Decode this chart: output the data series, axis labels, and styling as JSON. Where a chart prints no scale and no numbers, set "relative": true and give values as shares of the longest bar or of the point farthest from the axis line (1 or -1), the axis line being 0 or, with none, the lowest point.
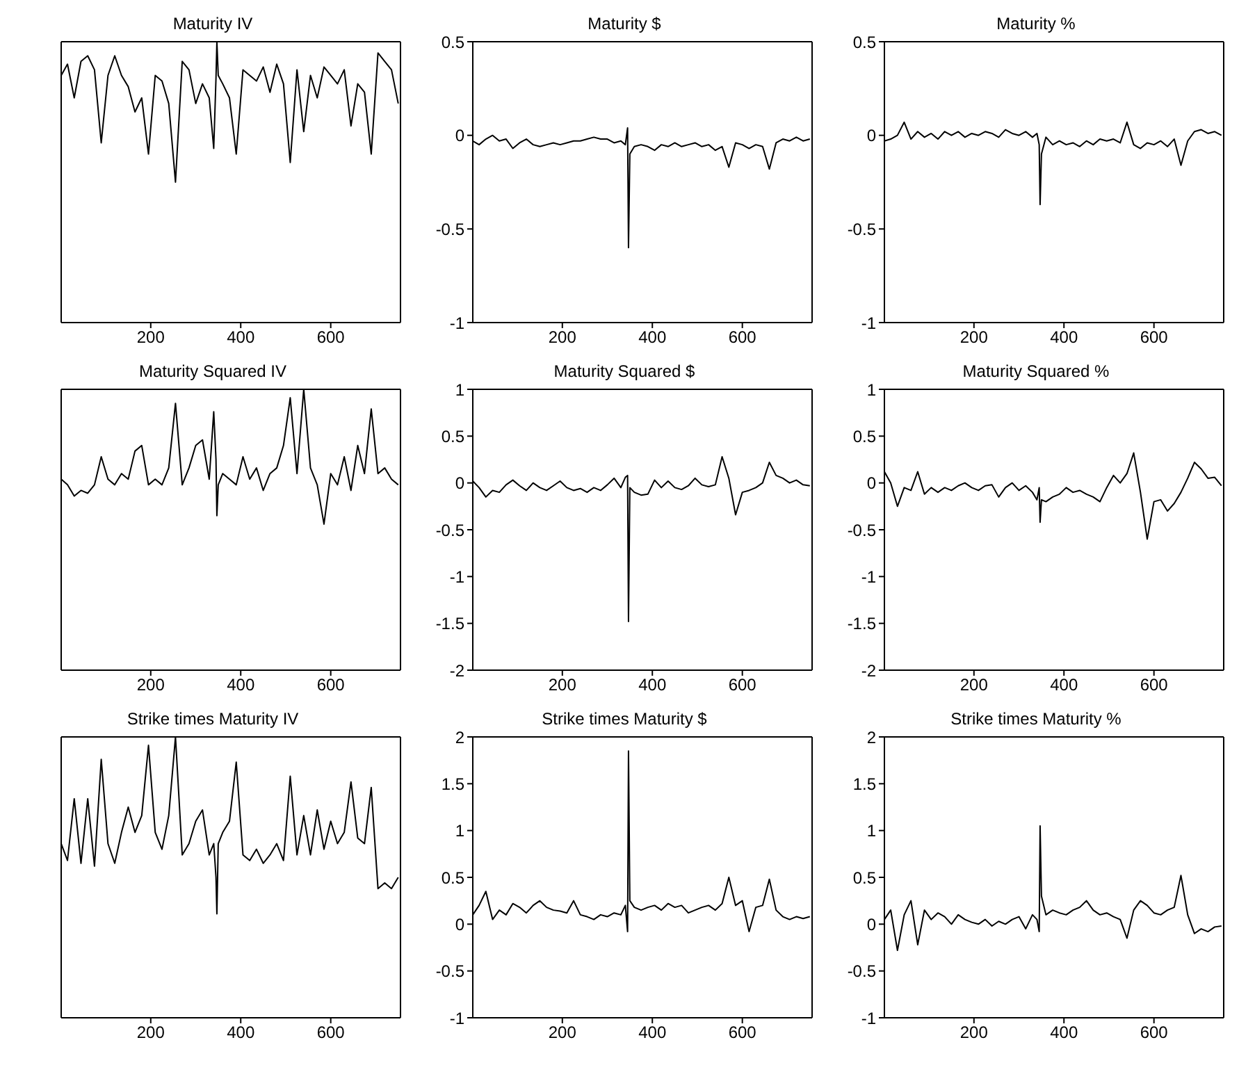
{
  "chart_data": [
    {
      "type": "line",
      "title": "Maturity IV",
      "relative": true,
      "tick_labels": "x",
      "color": "#000000",
      "xlim": [
        1,
        755
      ],
      "xticks": [
        200,
        400,
        600
      ],
      "x": [
        1,
        15,
        30,
        45,
        60,
        75,
        90,
        105,
        120,
        135,
        150,
        165,
        180,
        195,
        210,
        225,
        240,
        255,
        270,
        285,
        300,
        315,
        330,
        340,
        345,
        347,
        350,
        360,
        375,
        390,
        405,
        420,
        435,
        450,
        465,
        480,
        495,
        510,
        525,
        540,
        555,
        570,
        585,
        600,
        615,
        630,
        645,
        660,
        675,
        690,
        705,
        720,
        735,
        750
      ],
      "values": [
        0.88,
        0.92,
        0.8,
        0.93,
        0.95,
        0.9,
        0.64,
        0.88,
        0.95,
        0.88,
        0.84,
        0.75,
        0.8,
        0.6,
        0.88,
        0.86,
        0.78,
        0.5,
        0.93,
        0.9,
        0.78,
        0.85,
        0.8,
        0.62,
        0.87,
        1,
        0.88,
        0.85,
        0.8,
        0.6,
        0.9,
        0.88,
        0.86,
        0.91,
        0.82,
        0.92,
        0.85,
        0.57,
        0.9,
        0.68,
        0.88,
        0.8,
        0.91,
        0.88,
        0.85,
        0.9,
        0.7,
        0.85,
        0.82,
        0.6,
        0.96,
        0.93,
        0.9,
        0.78
      ]
    },
    {
      "type": "line",
      "title": "Maturity $",
      "color": "#000000",
      "xlim": [
        1,
        755
      ],
      "xticks": [
        200,
        400,
        600
      ],
      "ylim": [
        -1,
        0.5
      ],
      "yticks": [
        -1,
        -0.5,
        0,
        0.5
      ],
      "x": [
        1,
        15,
        30,
        45,
        60,
        75,
        90,
        105,
        120,
        135,
        150,
        165,
        180,
        195,
        210,
        225,
        240,
        255,
        270,
        285,
        300,
        315,
        330,
        340,
        345,
        347,
        350,
        360,
        375,
        390,
        405,
        420,
        435,
        450,
        465,
        480,
        495,
        510,
        525,
        540,
        555,
        570,
        585,
        600,
        615,
        630,
        645,
        660,
        675,
        690,
        705,
        720,
        735,
        750
      ],
      "values": [
        -0.03,
        -0.05,
        -0.02,
        0.0,
        -0.03,
        -0.02,
        -0.07,
        -0.04,
        -0.02,
        -0.05,
        -0.06,
        -0.05,
        -0.04,
        -0.05,
        -0.04,
        -0.03,
        -0.03,
        -0.02,
        -0.01,
        -0.02,
        -0.02,
        -0.04,
        -0.03,
        -0.05,
        0.04,
        -0.6,
        -0.1,
        -0.06,
        -0.05,
        -0.06,
        -0.08,
        -0.05,
        -0.06,
        -0.04,
        -0.06,
        -0.05,
        -0.04,
        -0.06,
        -0.05,
        -0.08,
        -0.06,
        -0.17,
        -0.04,
        -0.05,
        -0.07,
        -0.05,
        -0.06,
        -0.18,
        -0.04,
        -0.02,
        -0.03,
        -0.01,
        -0.03,
        -0.02
      ]
    },
    {
      "type": "line",
      "title": "Maturity %",
      "color": "#000000",
      "xlim": [
        1,
        755
      ],
      "xticks": [
        200,
        400,
        600
      ],
      "ylim": [
        -1,
        0.5
      ],
      "yticks": [
        -1,
        -0.5,
        0,
        0.5
      ],
      "x": [
        1,
        15,
        30,
        45,
        60,
        75,
        90,
        105,
        120,
        135,
        150,
        165,
        180,
        195,
        210,
        225,
        240,
        255,
        270,
        285,
        300,
        315,
        330,
        340,
        345,
        347,
        350,
        360,
        375,
        390,
        405,
        420,
        435,
        450,
        465,
        480,
        495,
        510,
        525,
        540,
        555,
        570,
        585,
        600,
        615,
        630,
        645,
        660,
        675,
        690,
        705,
        720,
        735,
        750
      ],
      "values": [
        -0.03,
        -0.02,
        0.0,
        0.07,
        -0.02,
        0.02,
        -0.01,
        0.01,
        -0.02,
        0.02,
        0.0,
        0.02,
        -0.01,
        0.01,
        0.0,
        0.02,
        0.01,
        -0.01,
        0.03,
        0.01,
        0.0,
        0.02,
        -0.01,
        0.01,
        -0.05,
        -0.37,
        -0.1,
        -0.01,
        -0.05,
        -0.03,
        -0.05,
        -0.04,
        -0.06,
        -0.03,
        -0.05,
        -0.02,
        -0.03,
        -0.02,
        -0.04,
        0.07,
        -0.05,
        -0.07,
        -0.04,
        -0.05,
        -0.03,
        -0.06,
        -0.02,
        -0.16,
        -0.03,
        0.02,
        0.03,
        0.01,
        0.02,
        0.0
      ]
    },
    {
      "type": "line",
      "title": "Maturity Squared IV",
      "relative": true,
      "tick_labels": "x",
      "color": "#000000",
      "xlim": [
        1,
        755
      ],
      "xticks": [
        200,
        400,
        600
      ],
      "x": [
        1,
        15,
        30,
        45,
        60,
        75,
        90,
        105,
        120,
        135,
        150,
        165,
        180,
        195,
        210,
        225,
        240,
        255,
        270,
        285,
        300,
        315,
        330,
        340,
        345,
        347,
        350,
        360,
        375,
        390,
        405,
        420,
        435,
        450,
        465,
        480,
        495,
        510,
        525,
        540,
        555,
        570,
        585,
        600,
        615,
        630,
        645,
        660,
        675,
        690,
        705,
        720,
        735,
        750
      ],
      "values": [
        0.68,
        0.66,
        0.62,
        0.64,
        0.63,
        0.66,
        0.76,
        0.68,
        0.66,
        0.7,
        0.68,
        0.78,
        0.8,
        0.66,
        0.68,
        0.66,
        0.72,
        0.95,
        0.66,
        0.72,
        0.8,
        0.82,
        0.68,
        0.92,
        0.75,
        0.55,
        0.66,
        0.7,
        0.68,
        0.66,
        0.76,
        0.68,
        0.72,
        0.64,
        0.7,
        0.72,
        0.8,
        0.97,
        0.7,
        1,
        0.72,
        0.66,
        0.52,
        0.7,
        0.66,
        0.76,
        0.64,
        0.8,
        0.7,
        0.93,
        0.7,
        0.72,
        0.68,
        0.66
      ]
    },
    {
      "type": "line",
      "title": "Maturity Squared $",
      "color": "#000000",
      "xlim": [
        1,
        755
      ],
      "xticks": [
        200,
        400,
        600
      ],
      "ylim": [
        -2,
        1
      ],
      "yticks": [
        -2,
        -1.5,
        -1,
        -0.5,
        0,
        0.5,
        1
      ],
      "x": [
        1,
        15,
        30,
        45,
        60,
        75,
        90,
        105,
        120,
        135,
        150,
        165,
        180,
        195,
        210,
        225,
        240,
        255,
        270,
        285,
        300,
        315,
        330,
        340,
        345,
        347,
        350,
        360,
        375,
        390,
        405,
        420,
        435,
        450,
        465,
        480,
        495,
        510,
        525,
        540,
        555,
        570,
        585,
        600,
        615,
        630,
        645,
        660,
        675,
        690,
        705,
        720,
        735,
        750
      ],
      "values": [
        0.02,
        -0.05,
        -0.15,
        -0.08,
        -0.1,
        -0.02,
        0.03,
        -0.03,
        -0.08,
        0.0,
        -0.05,
        -0.08,
        -0.03,
        0.02,
        -0.05,
        -0.08,
        -0.06,
        -0.1,
        -0.05,
        -0.08,
        -0.02,
        0.05,
        -0.05,
        0.06,
        0.08,
        -1.48,
        -0.05,
        -0.1,
        -0.13,
        -0.12,
        0.03,
        -0.05,
        0.02,
        -0.05,
        -0.07,
        -0.03,
        0.05,
        -0.02,
        -0.04,
        -0.02,
        0.28,
        0.05,
        -0.34,
        -0.1,
        -0.08,
        -0.05,
        0.0,
        0.22,
        0.08,
        0.05,
        0.0,
        0.03,
        -0.02,
        -0.03
      ]
    },
    {
      "type": "line",
      "title": "Maturity Squared %",
      "color": "#000000",
      "xlim": [
        1,
        755
      ],
      "xticks": [
        200,
        400,
        600
      ],
      "ylim": [
        -2,
        1
      ],
      "yticks": [
        -2,
        -1.5,
        -1,
        -0.5,
        0,
        0.5,
        1
      ],
      "x": [
        1,
        15,
        30,
        45,
        60,
        75,
        90,
        105,
        120,
        135,
        150,
        165,
        180,
        195,
        210,
        225,
        240,
        255,
        270,
        285,
        300,
        315,
        330,
        340,
        345,
        347,
        350,
        360,
        375,
        390,
        405,
        420,
        435,
        450,
        465,
        480,
        495,
        510,
        525,
        540,
        555,
        570,
        585,
        600,
        615,
        630,
        645,
        660,
        675,
        690,
        705,
        720,
        735,
        750
      ],
      "values": [
        0.12,
        0.0,
        -0.25,
        -0.05,
        -0.08,
        0.12,
        -0.12,
        -0.05,
        -0.1,
        -0.05,
        -0.08,
        -0.03,
        0.0,
        -0.05,
        -0.08,
        -0.03,
        -0.02,
        -0.15,
        -0.05,
        0.0,
        -0.08,
        -0.03,
        -0.1,
        -0.18,
        -0.05,
        -0.42,
        -0.18,
        -0.2,
        -0.15,
        -0.12,
        -0.05,
        -0.1,
        -0.08,
        -0.12,
        -0.15,
        -0.2,
        -0.05,
        0.08,
        0.0,
        0.1,
        0.32,
        -0.1,
        -0.6,
        -0.2,
        -0.18,
        -0.3,
        -0.22,
        -0.1,
        0.05,
        0.22,
        0.15,
        0.05,
        0.06,
        -0.03
      ]
    },
    {
      "type": "line",
      "title": "Strike times Maturity IV",
      "relative": true,
      "tick_labels": "x",
      "color": "#000000",
      "xlim": [
        1,
        755
      ],
      "xticks": [
        200,
        400,
        600
      ],
      "x": [
        1,
        15,
        30,
        45,
        60,
        75,
        90,
        105,
        120,
        135,
        150,
        165,
        180,
        195,
        210,
        225,
        240,
        255,
        270,
        285,
        300,
        315,
        330,
        340,
        345,
        347,
        350,
        360,
        375,
        390,
        405,
        420,
        435,
        450,
        465,
        480,
        495,
        510,
        525,
        540,
        555,
        570,
        585,
        600,
        615,
        630,
        645,
        660,
        675,
        690,
        705,
        720,
        735,
        750
      ],
      "values": [
        0.62,
        0.56,
        0.78,
        0.55,
        0.78,
        0.54,
        0.92,
        0.62,
        0.55,
        0.66,
        0.75,
        0.66,
        0.72,
        0.97,
        0.66,
        0.6,
        0.72,
        1,
        0.58,
        0.62,
        0.7,
        0.74,
        0.58,
        0.62,
        0.5,
        0.37,
        0.62,
        0.66,
        0.7,
        0.91,
        0.58,
        0.56,
        0.6,
        0.55,
        0.58,
        0.62,
        0.56,
        0.86,
        0.58,
        0.72,
        0.58,
        0.74,
        0.6,
        0.7,
        0.62,
        0.66,
        0.84,
        0.64,
        0.62,
        0.82,
        0.46,
        0.48,
        0.46,
        0.5
      ]
    },
    {
      "type": "line",
      "title": "Strike times Maturity $",
      "color": "#000000",
      "xlim": [
        1,
        755
      ],
      "xticks": [
        200,
        400,
        600
      ],
      "ylim": [
        -1,
        2
      ],
      "yticks": [
        -1,
        -0.5,
        0,
        0.5,
        1,
        1.5,
        2
      ],
      "x": [
        1,
        15,
        30,
        45,
        60,
        75,
        90,
        105,
        120,
        135,
        150,
        165,
        180,
        195,
        210,
        225,
        240,
        255,
        270,
        285,
        300,
        315,
        330,
        340,
        345,
        347,
        350,
        360,
        375,
        390,
        405,
        420,
        435,
        450,
        465,
        480,
        495,
        510,
        525,
        540,
        555,
        570,
        585,
        600,
        615,
        630,
        645,
        660,
        675,
        690,
        705,
        720,
        735,
        750
      ],
      "values": [
        0.1,
        0.2,
        0.35,
        0.05,
        0.15,
        0.1,
        0.22,
        0.18,
        0.12,
        0.2,
        0.25,
        0.18,
        0.15,
        0.14,
        0.12,
        0.25,
        0.1,
        0.08,
        0.05,
        0.1,
        0.08,
        0.12,
        0.1,
        0.2,
        -0.08,
        1.85,
        0.25,
        0.18,
        0.15,
        0.18,
        0.2,
        0.15,
        0.22,
        0.18,
        0.2,
        0.12,
        0.15,
        0.18,
        0.2,
        0.15,
        0.22,
        0.5,
        0.2,
        0.25,
        -0.08,
        0.18,
        0.2,
        0.48,
        0.15,
        0.08,
        0.05,
        0.08,
        0.06,
        0.08
      ]
    },
    {
      "type": "line",
      "title": "Strike times Maturity %",
      "color": "#000000",
      "xlim": [
        1,
        755
      ],
      "xticks": [
        200,
        400,
        600
      ],
      "ylim": [
        -1,
        2
      ],
      "yticks": [
        -1,
        -0.5,
        0,
        0.5,
        1,
        1.5,
        2
      ],
      "x": [
        1,
        15,
        30,
        45,
        60,
        75,
        90,
        105,
        120,
        135,
        150,
        165,
        180,
        195,
        210,
        225,
        240,
        255,
        270,
        285,
        300,
        315,
        330,
        340,
        345,
        347,
        350,
        360,
        375,
        390,
        405,
        420,
        435,
        450,
        465,
        480,
        495,
        510,
        525,
        540,
        555,
        570,
        585,
        600,
        615,
        630,
        645,
        660,
        675,
        690,
        705,
        720,
        735,
        750
      ],
      "values": [
        0.05,
        0.15,
        -0.28,
        0.1,
        0.25,
        -0.22,
        0.15,
        0.05,
        0.12,
        0.08,
        0.0,
        0.1,
        0.05,
        0.02,
        0.0,
        0.05,
        -0.02,
        0.03,
        0.0,
        0.05,
        0.08,
        -0.05,
        0.1,
        0.05,
        -0.08,
        1.05,
        0.3,
        0.1,
        0.15,
        0.12,
        0.1,
        0.15,
        0.18,
        0.25,
        0.15,
        0.1,
        0.12,
        0.08,
        0.05,
        -0.15,
        0.15,
        0.25,
        0.2,
        0.12,
        0.1,
        0.15,
        0.18,
        0.52,
        0.1,
        -0.1,
        -0.05,
        -0.08,
        -0.03,
        -0.02
      ]
    }
  ]
}
